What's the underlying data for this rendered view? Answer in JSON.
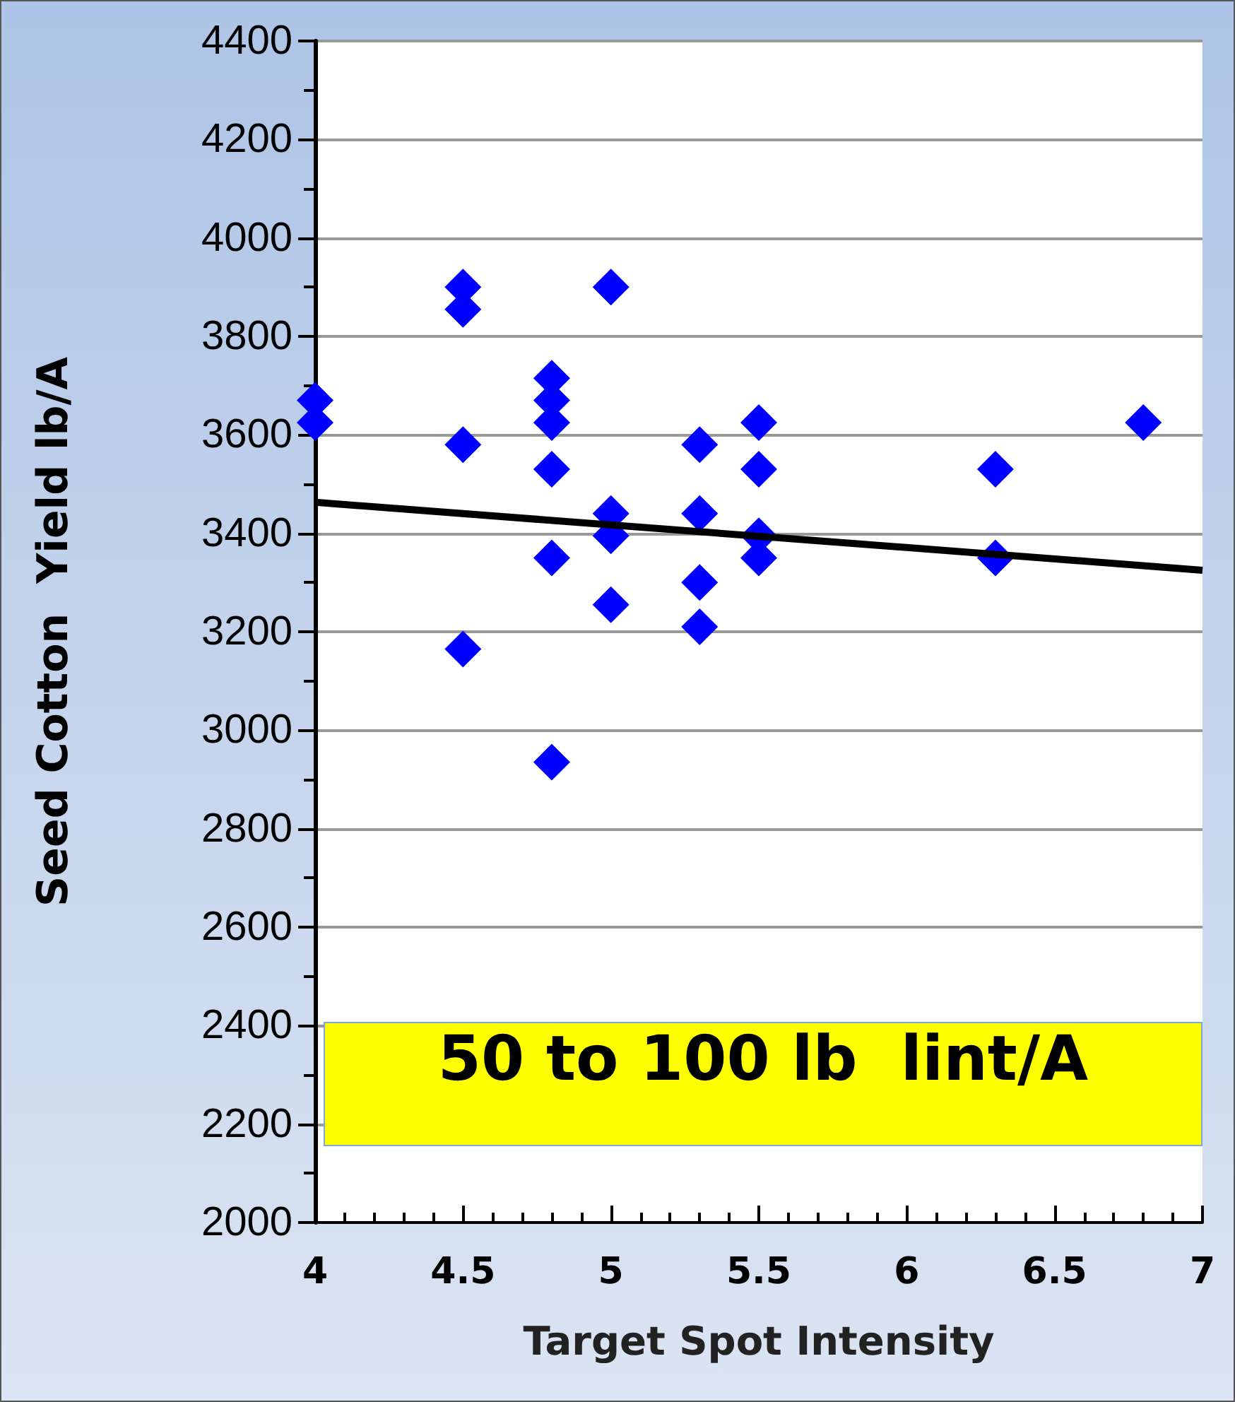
{
  "chart_data": {
    "type": "scatter",
    "xlabel": "Target Spot Intensity",
    "ylabel": "Seed Cotton  Yield lb/A",
    "annotations": [
      "50 to 100 lb  lint/A"
    ],
    "series": [
      {
        "color": "#0000ff",
        "marker": "diamond",
        "x": [
          4,
          4,
          4.5,
          4.5,
          4.5,
          4.5,
          4.8,
          4.8,
          4.8,
          4.8,
          4.8,
          4.8,
          5,
          5,
          5,
          5,
          5.3,
          5.3,
          5.3,
          5.3,
          5.5,
          5.5,
          5.5,
          5.5,
          6.3,
          6.3,
          6.8
        ],
        "values": [
          3670,
          3625,
          3900,
          3855,
          3580,
          3165,
          3715,
          3670,
          3625,
          3530,
          3350,
          2935,
          3900,
          3440,
          3395,
          3255,
          3580,
          3440,
          3300,
          3210,
          3625,
          3530,
          3395,
          3350,
          3530,
          3350,
          3625
        ]
      },
      {
        "type": "line",
        "color": "#000000",
        "marker": "none",
        "x": [
          4,
          7
        ],
        "values": [
          3463,
          3325
        ]
      }
    ],
    "xlim": [
      4,
      7
    ],
    "xticks": [
      4,
      4.5,
      5,
      5.5,
      6,
      6.5,
      7
    ],
    "ylim": [
      2000,
      4400
    ],
    "yticks": [
      2000,
      2200,
      2400,
      2600,
      2800,
      3000,
      3200,
      3400,
      3600,
      3800,
      4000,
      4200,
      4400
    ],
    "grid": "y"
  }
}
